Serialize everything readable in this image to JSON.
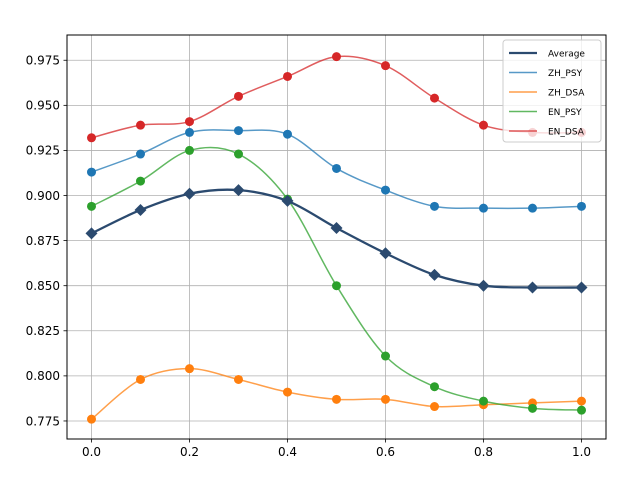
{
  "chart_data": {
    "type": "line",
    "x": [
      0.0,
      0.1,
      0.2,
      0.3,
      0.4,
      0.5,
      0.6,
      0.7,
      0.8,
      0.9,
      1.0
    ],
    "xlim": [
      -0.05,
      1.05
    ],
    "ylim": [
      0.765,
      0.989
    ],
    "xticks": [
      "0.0",
      "0.2",
      "0.4",
      "0.6",
      "0.8",
      "1.0"
    ],
    "xtick_values": [
      0.0,
      0.2,
      0.4,
      0.6,
      0.8,
      1.0
    ],
    "yticks": [
      "0.775",
      "0.800",
      "0.825",
      "0.850",
      "0.875",
      "0.900",
      "0.925",
      "0.950",
      "0.975"
    ],
    "ytick_values": [
      0.775,
      0.8,
      0.825,
      0.85,
      0.875,
      0.9,
      0.925,
      0.95,
      0.975
    ],
    "grid": true,
    "legend_position": "top-right",
    "title": "",
    "xlabel": "",
    "ylabel": "",
    "series": [
      {
        "name": "Average",
        "color": "#2b4a6f",
        "marker": "diamond",
        "bold": true,
        "values": [
          0.879,
          0.892,
          0.901,
          0.903,
          0.897,
          0.882,
          0.868,
          0.856,
          0.85,
          0.849,
          0.849
        ]
      },
      {
        "name": "ZH_PSY",
        "color": "#1f77b4",
        "marker": "circle",
        "bold": false,
        "values": [
          0.913,
          0.923,
          0.935,
          0.936,
          0.934,
          0.915,
          0.903,
          0.894,
          0.893,
          0.893,
          0.894
        ]
      },
      {
        "name": "ZH_DSA",
        "color": "#ff7f0e",
        "marker": "circle",
        "bold": false,
        "values": [
          0.776,
          0.798,
          0.804,
          0.798,
          0.791,
          0.787,
          0.787,
          0.783,
          0.784,
          0.785,
          0.786
        ]
      },
      {
        "name": "EN_PSY",
        "color": "#2ca02c",
        "marker": "circle",
        "bold": false,
        "values": [
          0.894,
          0.908,
          0.925,
          0.923,
          0.898,
          0.85,
          0.811,
          0.794,
          0.786,
          0.782,
          0.781
        ]
      },
      {
        "name": "EN_DSA",
        "color": "#d62728",
        "marker": "circle",
        "bold": false,
        "values": [
          0.932,
          0.939,
          0.941,
          0.955,
          0.966,
          0.977,
          0.972,
          0.954,
          0.939,
          0.935,
          0.935
        ]
      }
    ]
  }
}
